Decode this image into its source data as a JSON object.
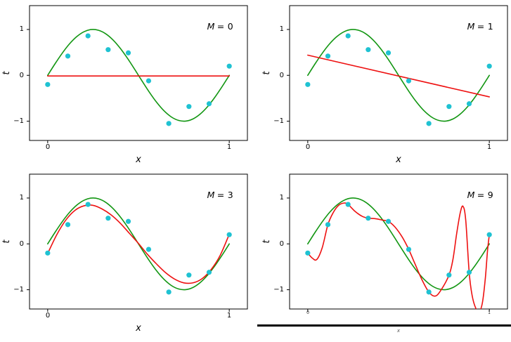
{
  "chart_data": {
    "type": "line",
    "description": "2x2 grid: polynomial curve fitting of orders M=0,1,3,9 to noisy samples of sin(2*pi*x)",
    "legend": "none",
    "grid": "off",
    "shared": {
      "xlabel": "x",
      "ylabel": "t",
      "xlim": [
        -0.1,
        1.1
      ],
      "ylim": [
        -1.42,
        1.52
      ],
      "xticks": {
        "values": [
          0,
          1
        ],
        "labels": [
          "0",
          "1"
        ]
      },
      "yticks": {
        "values": [
          -1,
          0,
          1
        ],
        "labels": [
          "−1",
          "0",
          "1"
        ]
      },
      "colors": {
        "true_function": "#129612",
        "fit": "#ee1111",
        "points": "#1fc2d2",
        "frame": "#000000"
      },
      "data_points": {
        "label": "training data",
        "x": [
          0.0,
          0.111,
          0.222,
          0.333,
          0.444,
          0.556,
          0.667,
          0.778,
          0.889,
          1.0
        ],
        "t": [
          -0.2,
          0.42,
          0.86,
          0.56,
          0.49,
          -0.12,
          -1.05,
          -0.68,
          -0.62,
          0.2
        ]
      },
      "true_function": {
        "label": "sin(2πx)",
        "x": [
          0,
          0.04,
          0.08,
          0.12,
          0.16,
          0.2,
          0.24,
          0.28,
          0.32,
          0.36,
          0.4,
          0.44,
          0.48,
          0.52,
          0.56,
          0.6,
          0.64,
          0.68,
          0.72,
          0.76,
          0.8,
          0.84,
          0.88,
          0.92,
          0.96,
          1.0
        ],
        "y": [
          0,
          0.249,
          0.482,
          0.685,
          0.844,
          0.951,
          0.998,
          0.982,
          0.905,
          0.771,
          0.588,
          0.368,
          0.125,
          -0.125,
          -0.368,
          -0.588,
          -0.771,
          -0.905,
          -0.982,
          -0.998,
          -0.951,
          -0.844,
          -0.685,
          -0.482,
          -0.249,
          0
        ]
      }
    },
    "panels": [
      {
        "annotation": "M = 0",
        "m_symbol": "M",
        "m_rest": "= 0",
        "fit": {
          "label": "polynomial fit M=0",
          "x": [
            0,
            1
          ],
          "y": [
            -0.014,
            -0.014
          ]
        }
      },
      {
        "annotation": "M = 1",
        "m_symbol": "M",
        "m_rest": "= 1",
        "fit": {
          "label": "polynomial fit M=1",
          "x": [
            0,
            1
          ],
          "y": [
            0.44,
            -0.47
          ]
        }
      },
      {
        "annotation": "M = 3",
        "m_symbol": "M",
        "m_rest": "= 3",
        "fit": {
          "label": "polynomial fit M=3",
          "x": [
            0,
            0.05,
            0.1,
            0.15,
            0.2,
            0.25,
            0.3,
            0.35,
            0.4,
            0.45,
            0.5,
            0.55,
            0.6,
            0.65,
            0.7,
            0.75,
            0.8,
            0.85,
            0.9,
            0.95,
            1.0
          ],
          "y": [
            -0.21,
            0.2,
            0.52,
            0.73,
            0.83,
            0.84,
            0.76,
            0.63,
            0.45,
            0.23,
            0.01,
            -0.23,
            -0.44,
            -0.63,
            -0.77,
            -0.85,
            -0.85,
            -0.76,
            -0.56,
            -0.25,
            0.21
          ]
        }
      },
      {
        "annotation": "M = 9",
        "m_symbol": "M",
        "m_rest": "= 9",
        "degraded_axis_labels": true,
        "fit": {
          "label": "polynomial fit M=9 (interpolates all points)",
          "x": [
            0.0,
            0.025,
            0.05,
            0.08,
            0.111,
            0.14,
            0.17,
            0.2,
            0.222,
            0.26,
            0.3,
            0.333,
            0.37,
            0.41,
            0.444,
            0.48,
            0.52,
            0.556,
            0.59,
            0.63,
            0.667,
            0.7,
            0.73,
            0.778,
            0.8,
            0.82,
            0.84,
            0.855,
            0.87,
            0.889,
            0.905,
            0.925,
            0.945,
            0.962,
            0.978,
            0.99,
            1.0
          ],
          "y": [
            -0.2,
            -0.31,
            -0.34,
            -0.08,
            0.42,
            0.68,
            0.84,
            0.89,
            0.86,
            0.71,
            0.6,
            0.56,
            0.55,
            0.52,
            0.49,
            0.37,
            0.15,
            -0.12,
            -0.43,
            -0.79,
            -1.05,
            -1.14,
            -1.03,
            -0.68,
            -0.33,
            0.22,
            0.68,
            0.82,
            0.52,
            -0.62,
            -1.12,
            -1.4,
            -1.47,
            -1.28,
            -0.75,
            -0.15,
            0.2
          ]
        }
      }
    ]
  }
}
